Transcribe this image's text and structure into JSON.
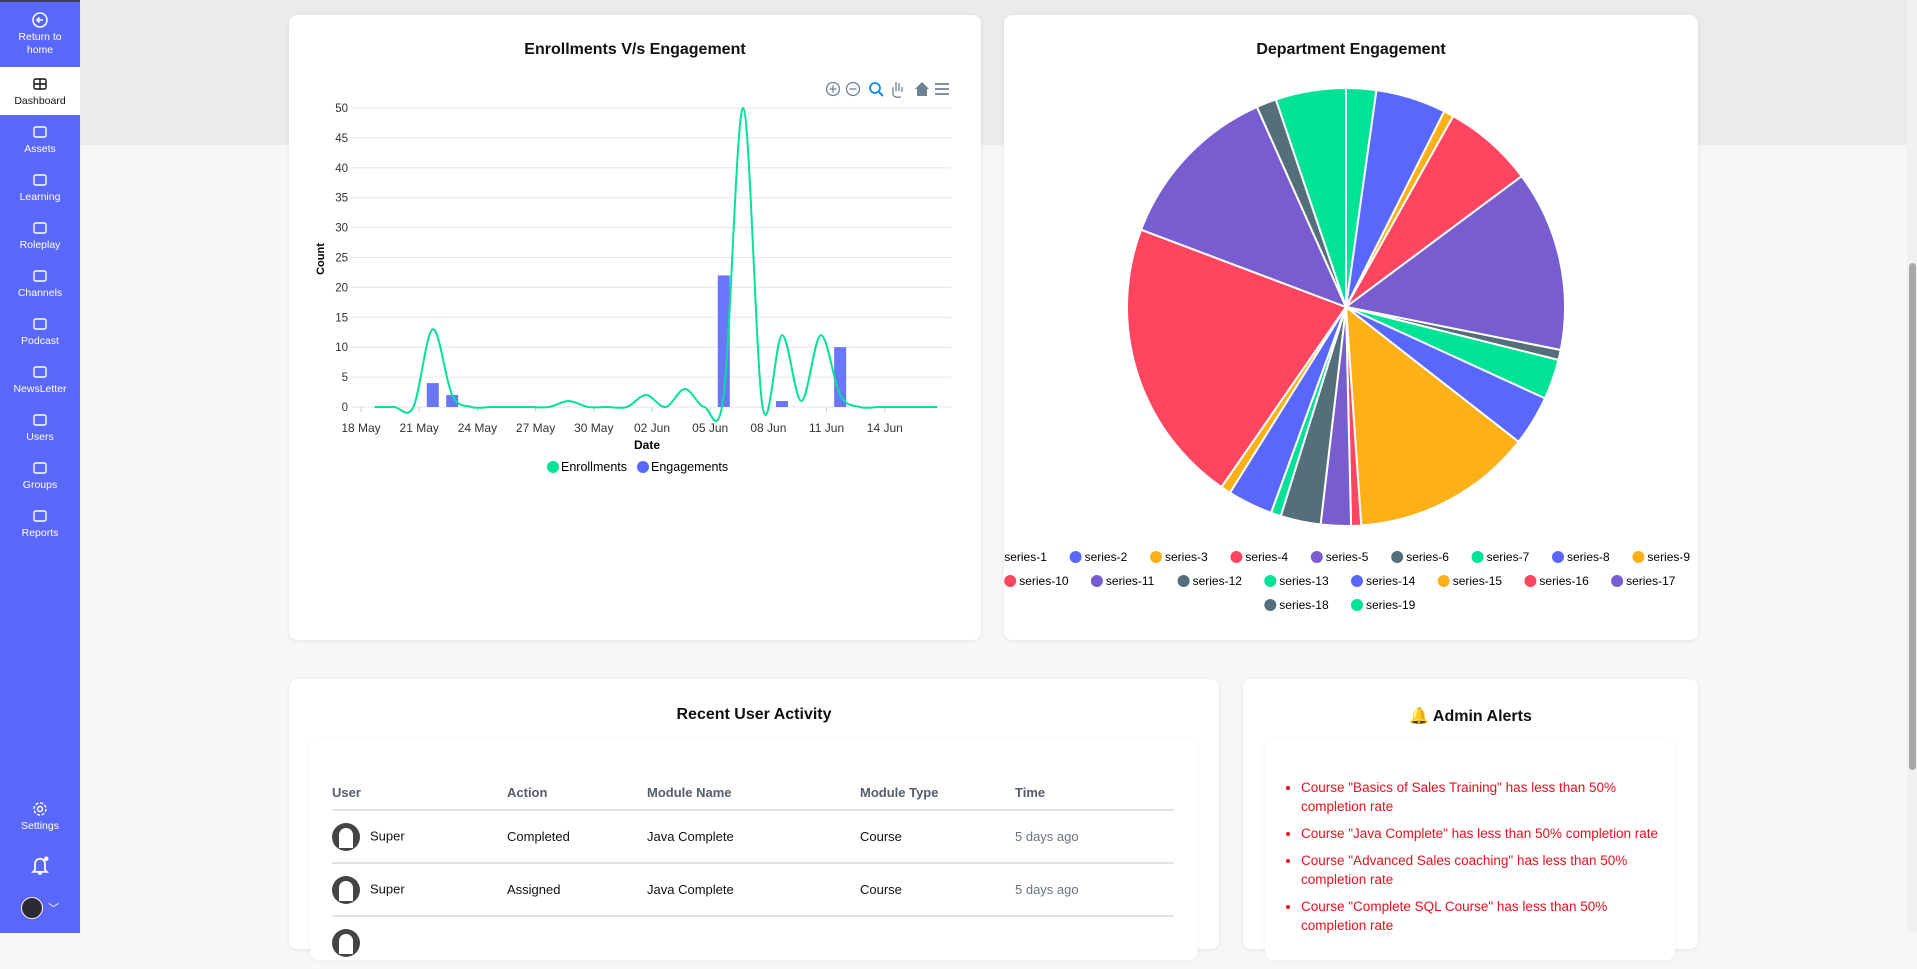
{
  "sidebar": {
    "return_label": "Return to home",
    "items": [
      {
        "label": "Dashboard",
        "icon": "dashboard-icon",
        "active": true
      },
      {
        "label": "Assets",
        "icon": "folder-plus-icon"
      },
      {
        "label": "Learning",
        "icon": "certificate-icon"
      },
      {
        "label": "Roleplay",
        "icon": "user-frame-icon"
      },
      {
        "label": "Channels",
        "icon": "grid-icon"
      },
      {
        "label": "Podcast",
        "icon": "podcast-icon"
      },
      {
        "label": "NewsLetter",
        "icon": "newsletter-icon"
      },
      {
        "label": "Users",
        "icon": "user-plus-icon"
      },
      {
        "label": "Groups",
        "icon": "users-icon"
      },
      {
        "label": "Reports",
        "icon": "printer-icon"
      }
    ],
    "settings_label": "Settings",
    "bell_icon": "bell-icon",
    "avatar_icon": "avatar-icon",
    "accent": "#5a67fd"
  },
  "chart_data": [
    {
      "type": "line+bar",
      "title": "Enrollments V/s Engagement",
      "xlabel": "Date",
      "ylabel": "Count",
      "ylim": [
        0,
        50
      ],
      "yticks": [
        "0",
        "5",
        "10",
        "15",
        "20",
        "25",
        "30",
        "35",
        "40",
        "45",
        "50"
      ],
      "xticks": [
        "18 May",
        "21 May",
        "24 May",
        "27 May",
        "30 May",
        "02 Jun",
        "05 Jun",
        "08 Jun",
        "11 Jun",
        "14 Jun"
      ],
      "x": [
        "18 May",
        "19 May",
        "20 May",
        "21 May",
        "22 May",
        "23 May",
        "24 May",
        "25 May",
        "26 May",
        "27 May",
        "28 May",
        "29 May",
        "30 May",
        "31 May",
        "01 Jun",
        "02 Jun",
        "03 Jun",
        "04 Jun",
        "05 Jun",
        "06 Jun",
        "07 Jun",
        "08 Jun",
        "09 Jun",
        "10 Jun",
        "11 Jun",
        "12 Jun",
        "13 Jun",
        "14 Jun",
        "15 Jun",
        "16 Jun"
      ],
      "series": [
        {
          "name": "Enrollments",
          "type": "line",
          "color": "#00e396",
          "values": [
            0,
            0,
            0,
            13,
            2,
            0,
            0,
            0,
            0,
            0,
            1,
            0,
            0,
            0,
            2,
            0,
            3,
            0,
            2,
            50,
            0,
            12,
            1,
            12,
            2,
            0,
            0,
            0,
            0,
            0
          ]
        },
        {
          "name": "Engagements",
          "type": "bar",
          "color": "#5a67fd",
          "values": [
            0,
            0,
            0,
            4,
            2,
            0,
            0,
            0,
            0,
            0,
            0,
            0,
            0,
            0,
            0,
            0,
            0,
            0,
            22,
            0,
            0,
            1,
            0,
            0,
            10,
            0,
            0,
            0,
            0,
            0
          ]
        }
      ],
      "legend": "bottom",
      "grid": true,
      "toolbar": [
        "zoom-in-icon",
        "zoom-out-icon",
        "zoom-select-icon",
        "pan-hand-icon",
        "home-icon",
        "menu-icon"
      ]
    },
    {
      "type": "pie",
      "title": "Department Engagement",
      "legend": "bottom",
      "labels": [
        "series-1",
        "series-2",
        "series-3",
        "series-4",
        "series-5",
        "series-6",
        "series-7",
        "series-8",
        "series-9",
        "series-10",
        "series-11",
        "series-12",
        "series-13",
        "series-14",
        "series-15",
        "series-16",
        "series-17",
        "series-18",
        "series-19"
      ],
      "values": [
        3,
        7,
        1,
        9,
        18,
        1,
        4,
        5,
        18,
        1,
        3,
        4,
        1,
        4.5,
        1,
        28.5,
        17,
        2,
        7
      ],
      "colors": [
        "#00e396",
        "#5a67fd",
        "#feb019",
        "#ff4560",
        "#775dd0",
        "#546e7a",
        "#00e396",
        "#5a67fd",
        "#feb019",
        "#ff4560",
        "#775dd0",
        "#546e7a",
        "#00e396",
        "#5a67fd",
        "#feb019",
        "#ff4560",
        "#775dd0",
        "#546e7a",
        "#00e396"
      ]
    }
  ],
  "activity": {
    "title": "Recent User Activity",
    "columns": [
      "User",
      "Action",
      "Module Name",
      "Module Type",
      "Time"
    ],
    "rows": [
      [
        "Super",
        "Completed",
        "Java Complete",
        "Course",
        "5 days ago"
      ],
      [
        "Super",
        "Assigned",
        "Java Complete",
        "Course",
        "5 days ago"
      ]
    ]
  },
  "alerts": {
    "title": "🔔 Admin Alerts",
    "items": [
      "Course \"Basics of Sales Training\" has less than 50% completion rate",
      "Course \"Java Complete\" has less than 50% completion rate",
      "Course \"Advanced Sales coaching\" has less than 50% completion rate",
      "Course \"Complete SQL Course\" has less than 50% completion rate"
    ]
  }
}
